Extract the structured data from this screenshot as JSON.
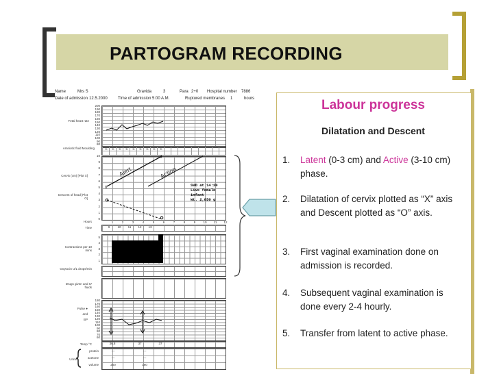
{
  "slide": {
    "title": "PARTOGRAM RECORDING"
  },
  "form": {
    "name_label": "Name",
    "name_value": "Mrs S",
    "gravida_label": "Gravida",
    "gravida_value": "3",
    "para_label": "Para",
    "para_value": "2+0",
    "hospital_label": "Hospital number",
    "hospital_value": "7886",
    "date_label": "Date of admission",
    "date_value": "12.5.2000",
    "time_label": "Time of admission",
    "time_value": "5:00 A.M.",
    "membranes_label": "Ruptured membranes",
    "membranes_value": "1",
    "hours_suffix": "hours",
    "fhr_label": "Fetal heart rate",
    "fhr_ticks": [
      "200",
      "190",
      "180",
      "170",
      "160",
      "150",
      "140",
      "130",
      "120",
      "110",
      "100",
      "90",
      "80"
    ],
    "amniotic_label": "Amniotic fluid Moulding",
    "amniotic_values": [
      "C",
      "C",
      "C",
      "C",
      "C",
      "C",
      "C",
      "C",
      "C"
    ],
    "cervix_label": "Cervix (cm) [Plot X]",
    "descent_label": "Descent of head [Plot O]",
    "dil_ticks": [
      "10",
      "9",
      "8",
      "7",
      "6",
      "5",
      "4",
      "3",
      "2",
      "1",
      "0"
    ],
    "alert_label": "Alert",
    "action_label": "Action",
    "note_line1": "SVD at 14:20",
    "note_line2": "Live female",
    "note_line3": "infant",
    "note_line4": "Wt. 2,850 g",
    "hours_label": "Hours",
    "hour_numbers": [
      "1",
      "2",
      "3",
      "4",
      "5",
      "6",
      "7",
      "8",
      "9",
      "10",
      "11",
      "12"
    ],
    "time_row_label": "Time",
    "time_values": [
      "9",
      "10",
      "11",
      "12",
      "13"
    ],
    "contractions_label": "Contractions per 10 mins",
    "contraction_ticks": [
      "5",
      "4",
      "3",
      "2",
      "1"
    ],
    "oxytocin_label": "Oxytocin U/L drops/min",
    "drugs_label": "Drugs given and IV fluids",
    "pulse_label": "Pulse ●",
    "and_label": "and",
    "bp_label": "BP",
    "pulse_ticks": [
      "180",
      "170",
      "160",
      "150",
      "140",
      "130",
      "120",
      "110",
      "100",
      "90",
      "80",
      "70",
      "60"
    ],
    "temp_label": "Temp °C",
    "temp_values": [
      "36.8",
      "37",
      "37"
    ],
    "urine_label": "Urine",
    "urine_rows": [
      "protein",
      "acetone",
      "volume"
    ],
    "urine_protein": [
      "—",
      "—"
    ],
    "urine_acetone": [
      "—",
      "—"
    ],
    "urine_volume": [
      "200",
      "190"
    ]
  },
  "panel": {
    "title": "Labour progress",
    "subheading": "Dilatation and Descent",
    "points": [
      {
        "num": "1.",
        "a": "Latent",
        "b": " (0-3 cm) and ",
        "c": "Active",
        "d": " (3-10 cm) phase."
      },
      {
        "num": "2.",
        "text": "Dilatation of cervix plotted as “X” axis and Descent plotted as “O” axis."
      },
      {
        "num": "3.",
        "text": "First vaginal examination done on admission is recorded."
      },
      {
        "num": "4.",
        "text": "Subsequent vaginal examination is done every 2-4 hourly."
      },
      {
        "num": "5.",
        "text": "Transfer from latent to active phase."
      }
    ]
  },
  "colors": {
    "title_bar": "#d6d6a6",
    "accent_pink": "#cc3399",
    "gold": "#b5a035"
  }
}
